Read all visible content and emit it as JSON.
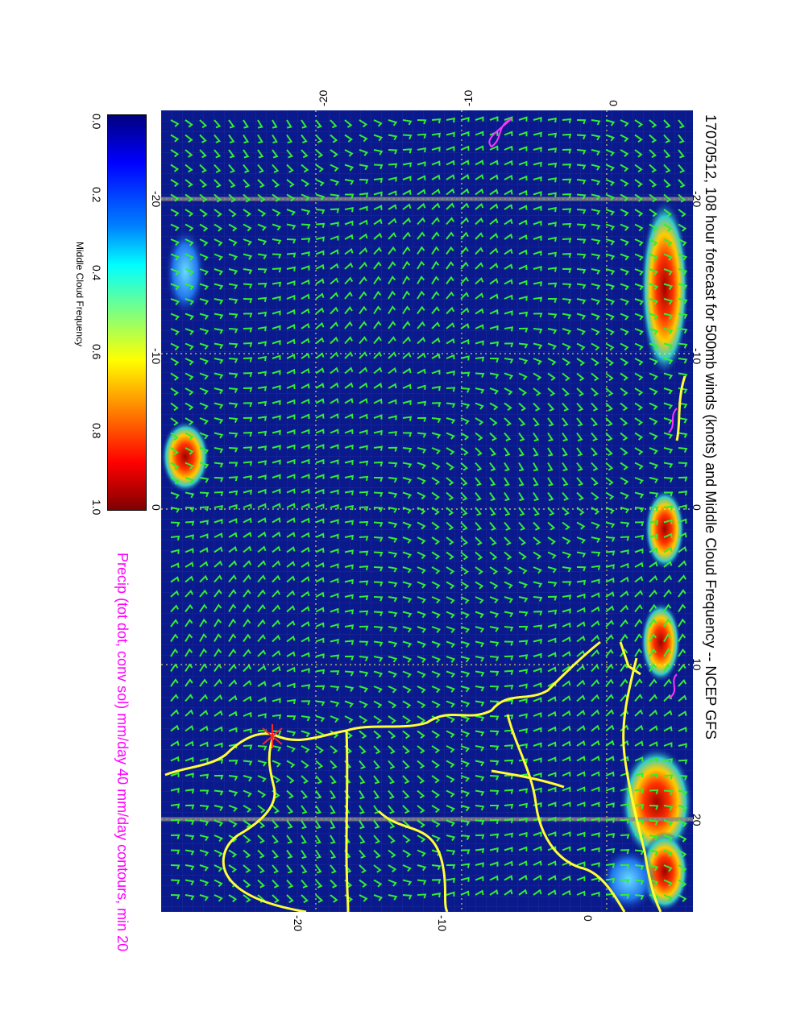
{
  "title": "17070512, 108 hour forecast for 500mb winds (knots) and Middle Cloud Frequency -- NCEP GFS",
  "stamp": "17070512",
  "precip_caption": "Precip (tot dot, conv sol) mm/day 40 mm/day contours, min 20",
  "colorbar": {
    "label": "Middle Cloud Frequency",
    "ticks": [
      "0.0",
      "0.2",
      "0.4",
      "0.6",
      "0.8",
      "1.0"
    ],
    "colors": [
      "#00007f",
      "#0000ff",
      "#007fff",
      "#00ffff",
      "#7fff7f",
      "#ffff00",
      "#ff7f00",
      "#ff0000",
      "#7f0000"
    ]
  },
  "axes": {
    "lon_ticks": [
      "-20",
      "-10",
      "0",
      "10",
      "20"
    ],
    "lat_ticks_top": [
      "-20",
      "-10",
      "0"
    ],
    "lat_ticks_bottom": [
      "-20",
      "-10",
      "0"
    ]
  },
  "colors": {
    "background_field": "#0a1a8c",
    "barb": "#33ee33",
    "coastline": "#ffff33",
    "precip_contour": "#ff33ff",
    "station_marker": "#ff2222"
  }
}
